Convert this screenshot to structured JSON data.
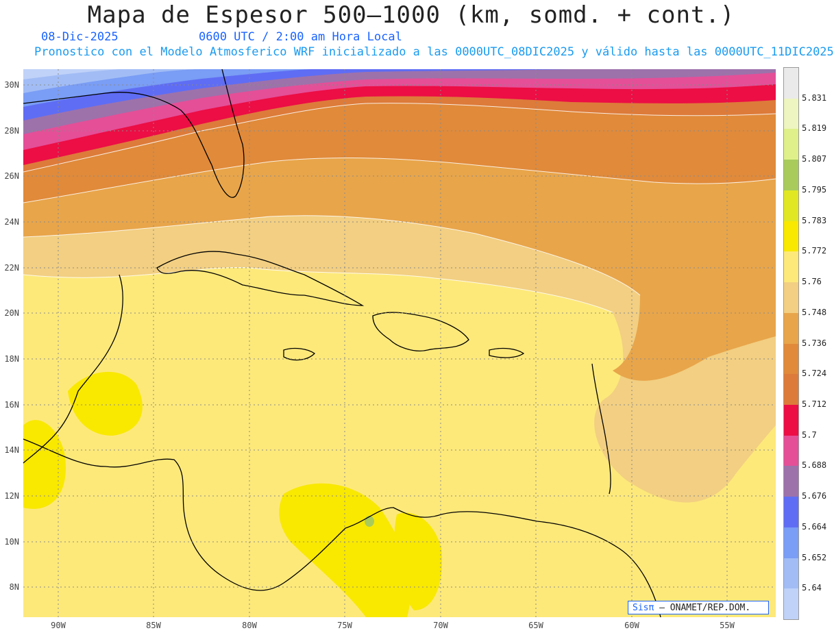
{
  "title": "Mapa de Espesor 500—1000 (km, somd. + cont.)",
  "date": "08-Dic-2025",
  "time": "0600 UTC / 2:00 am Hora Local",
  "forecast_note": "Pronostico con el Modelo Atmosferico WRF inicializado a las 0000UTC_08DIC2025 y válido hasta las  0000UTC_11DIC2025",
  "map": {
    "lat_labels": [
      "30N",
      "28N",
      "26N",
      "24N",
      "22N",
      "20N",
      "18N",
      "16N",
      "14N",
      "12N",
      "10N",
      "8N"
    ],
    "lon_labels": [
      "90W",
      "85W",
      "80W",
      "75W",
      "70W",
      "65W",
      "60W",
      "55W"
    ],
    "lat_range": [
      6.8,
      30.8
    ],
    "lon_range": [
      -91.8,
      -52.5
    ],
    "grid": "dotted"
  },
  "legend": {
    "labels": [
      "5.831",
      "5.819",
      "5.807",
      "5.795",
      "5.783",
      "5.772",
      "5.76",
      "5.748",
      "5.736",
      "5.724",
      "5.712",
      "5.7",
      "5.688",
      "5.676",
      "5.664",
      "5.652",
      "5.64"
    ],
    "colors": [
      "#eaeaea",
      "#eef5c0",
      "#dff08a",
      "#a8cb5c",
      "#e1e823",
      "#f9e800",
      "#fde97a",
      "#f2cf82",
      "#e8a54a",
      "#e08a3a",
      "#dd7b3a",
      "#ec0e45",
      "#e44f98",
      "#9d72ab",
      "#5f6df4",
      "#7a9df5",
      "#a2bdf5",
      "#c0d2f8"
    ]
  },
  "credit": {
    "brand": "Sisπ",
    "rest": " –  ONAMET/REP.DOM."
  }
}
